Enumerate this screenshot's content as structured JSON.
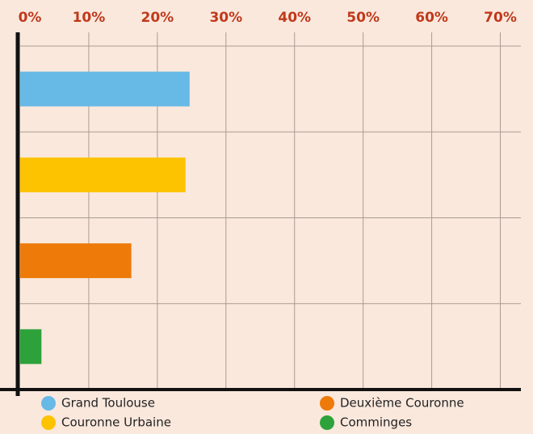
{
  "chart_data": {
    "type": "hbar",
    "categories": [
      "Grand Toulouse",
      "Couronne Urbaine",
      "Deuxième Couronne",
      "Comminges"
    ],
    "values": [
      24.7,
      24.1,
      16.2,
      3.1
    ],
    "colors": [
      "#67b9e6",
      "#fdc300",
      "#ee7a0a",
      "#2ea23a"
    ],
    "xlim": [
      0,
      73
    ],
    "xticks": [
      {
        "value": 0,
        "label": "0%"
      },
      {
        "value": 10,
        "label": "10%"
      },
      {
        "value": 20,
        "label": "20%"
      },
      {
        "value": 30,
        "label": "30%"
      },
      {
        "value": 40,
        "label": "40%"
      },
      {
        "value": 50,
        "label": "50%"
      },
      {
        "value": 60,
        "label": "60%"
      },
      {
        "value": 70,
        "label": "70%"
      }
    ],
    "grid": true
  }
}
